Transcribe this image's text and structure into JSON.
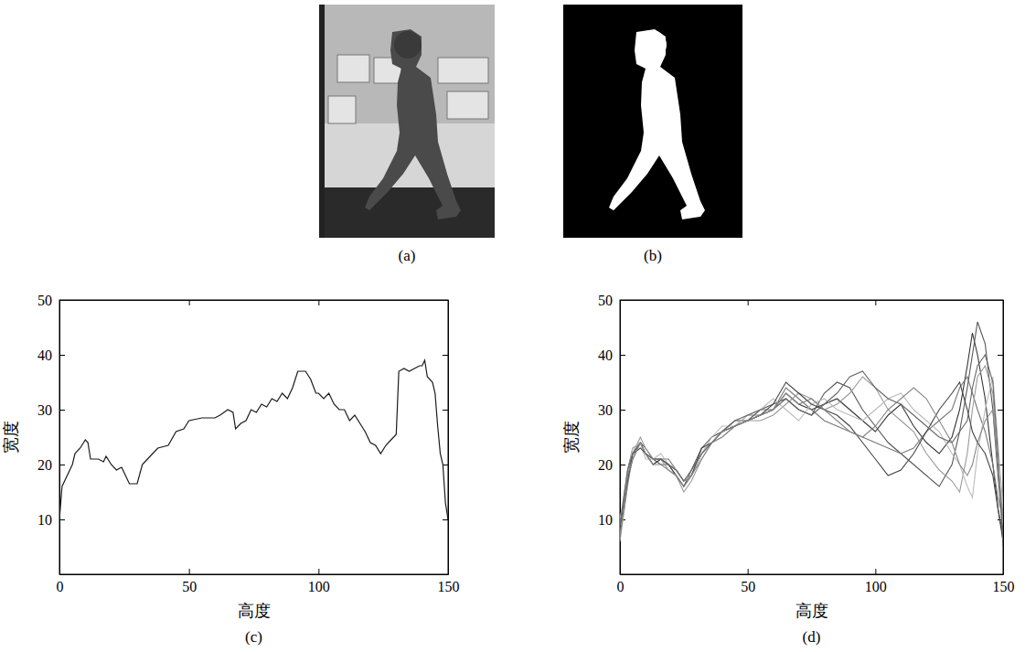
{
  "images": [
    {
      "caption": "(a)"
    },
    {
      "caption": "(b)"
    }
  ],
  "chart_data": [
    {
      "type": "line",
      "title": "(c)",
      "x_label": "高度",
      "y_label": "宽度",
      "color": "#1a1a1a",
      "xlim": [
        0,
        150
      ],
      "xticks": [
        0,
        50,
        100,
        150
      ],
      "ylim": [
        0,
        50
      ],
      "yticks": [
        10,
        20,
        30,
        40,
        50
      ],
      "x": [
        0,
        1,
        3,
        5,
        6,
        8,
        10,
        11,
        12,
        15,
        17,
        18,
        20,
        22,
        24,
        25,
        27,
        30,
        32,
        34,
        36,
        38,
        42,
        45,
        48,
        50,
        55,
        60,
        62,
        65,
        67,
        68,
        70,
        72,
        74,
        76,
        78,
        80,
        82,
        84,
        86,
        88,
        90,
        92,
        95,
        97,
        99,
        100,
        102,
        104,
        106,
        108,
        110,
        112,
        114,
        116,
        118,
        120,
        122,
        124,
        126,
        128,
        130,
        131,
        133,
        135,
        137,
        139,
        140,
        141,
        142,
        144,
        145,
        146,
        147,
        148,
        149,
        150
      ],
      "values": [
        10,
        16,
        18,
        20,
        22,
        23,
        24.5,
        24,
        21,
        21,
        20.5,
        21.5,
        20,
        19,
        19.5,
        18.5,
        16.5,
        16.5,
        20,
        21,
        22,
        23,
        23.5,
        26,
        26.5,
        28,
        28.5,
        28.5,
        29,
        30,
        29.5,
        26.5,
        27.5,
        28,
        30,
        29.5,
        31,
        30.5,
        32,
        31.5,
        33,
        32,
        34,
        37,
        37,
        35.5,
        33,
        33,
        32,
        33,
        31,
        30,
        30,
        28,
        29,
        27.5,
        26,
        24,
        23.5,
        22,
        23.5,
        24.5,
        25.5,
        37,
        37.5,
        37,
        37.5,
        38,
        38,
        39,
        36,
        35,
        33,
        27,
        22,
        20,
        13,
        10
      ]
    },
    {
      "type": "line",
      "title": "(d)",
      "x_label": "高度",
      "y_label": "宽度",
      "xlim": [
        0,
        150
      ],
      "xticks": [
        0,
        50,
        100,
        150
      ],
      "ylim": [
        0,
        50
      ],
      "yticks": [
        10,
        20,
        30,
        40,
        50
      ],
      "x": [
        0,
        3,
        5,
        8,
        10,
        13,
        16,
        19,
        22,
        25,
        28,
        32,
        36,
        40,
        45,
        50,
        55,
        60,
        65,
        70,
        75,
        80,
        85,
        90,
        95,
        100,
        105,
        110,
        115,
        120,
        125,
        130,
        133,
        136,
        138,
        140,
        143,
        146,
        148,
        150
      ],
      "series": [
        {
          "color": "#333333",
          "values": [
            8,
            18,
            22,
            24,
            22,
            21,
            21,
            20,
            19,
            17,
            18,
            22,
            24,
            26,
            27,
            28,
            29,
            30,
            33,
            31,
            30,
            31,
            32,
            30,
            28,
            26,
            29,
            31,
            27,
            24,
            22,
            25,
            30,
            38,
            44,
            40,
            32,
            20,
            12,
            6
          ]
        },
        {
          "color": "#555555",
          "values": [
            7,
            17,
            21,
            24,
            23,
            21,
            20,
            20,
            18,
            16,
            19,
            23,
            25,
            26,
            28,
            28,
            30,
            31,
            32,
            30,
            29,
            33,
            35,
            34,
            30,
            27,
            24,
            22,
            20,
            18,
            16,
            20,
            26,
            34,
            40,
            46,
            42,
            30,
            18,
            8
          ]
        },
        {
          "color": "#777777",
          "values": [
            9,
            19,
            23,
            24,
            22,
            20,
            21,
            21,
            19,
            17,
            18,
            22,
            24,
            25,
            27,
            29,
            29,
            30,
            34,
            32,
            30,
            28,
            27,
            26,
            25,
            24,
            23,
            22,
            23,
            26,
            28,
            30,
            34,
            36,
            33,
            30,
            26,
            20,
            14,
            10
          ]
        },
        {
          "color": "#999999",
          "values": [
            6,
            16,
            22,
            25,
            23,
            21,
            21,
            19,
            18,
            15,
            17,
            21,
            24,
            26,
            28,
            28,
            28,
            29,
            31,
            33,
            32,
            30,
            31,
            33,
            36,
            34,
            30,
            28,
            26,
            22,
            19,
            17,
            15,
            22,
            30,
            36,
            38,
            33,
            20,
            9
          ]
        },
        {
          "color": "#bbbbbb",
          "values": [
            10,
            18,
            23,
            24,
            21,
            21,
            22,
            20,
            19,
            17,
            18,
            22,
            25,
            27,
            27,
            29,
            30,
            32,
            30,
            28,
            31,
            32,
            30,
            29,
            28,
            30,
            32,
            33,
            30,
            28,
            26,
            22,
            20,
            16,
            14,
            22,
            30,
            36,
            24,
            12
          ]
        },
        {
          "color": "#444444",
          "values": [
            8,
            17,
            22,
            23,
            22,
            20,
            21,
            20,
            18,
            16,
            18,
            23,
            24,
            26,
            27,
            28,
            29,
            31,
            35,
            33,
            31,
            30,
            29,
            27,
            24,
            21,
            18,
            19,
            22,
            26,
            30,
            33,
            35,
            30,
            26,
            24,
            22,
            18,
            12,
            7
          ]
        },
        {
          "color": "#666666",
          "values": [
            9,
            19,
            22,
            24,
            22,
            21,
            21,
            20,
            19,
            17,
            19,
            22,
            24,
            26,
            28,
            29,
            30,
            30,
            32,
            30,
            29,
            31,
            33,
            36,
            37,
            34,
            32,
            31,
            29,
            27,
            25,
            24,
            26,
            28,
            34,
            38,
            40,
            35,
            22,
            5
          ]
        },
        {
          "color": "#888888",
          "values": [
            7,
            18,
            21,
            24,
            22,
            20,
            20,
            19,
            18,
            16,
            18,
            21,
            24,
            26,
            27,
            28,
            29,
            30,
            33,
            31,
            32,
            30,
            28,
            26,
            25,
            27,
            30,
            32,
            34,
            32,
            28,
            24,
            20,
            18,
            20,
            24,
            28,
            30,
            20,
            10
          ]
        }
      ]
    }
  ]
}
